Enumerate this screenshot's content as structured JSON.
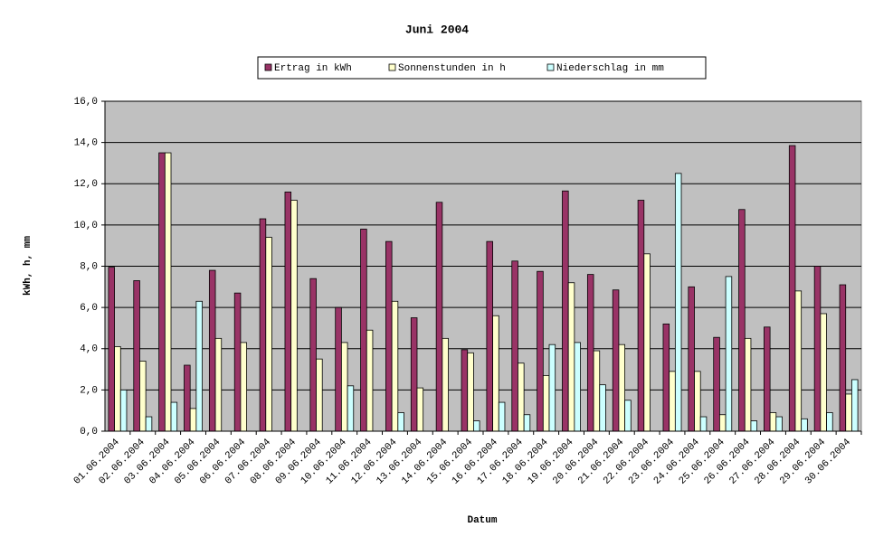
{
  "chart_data": {
    "type": "bar",
    "title": "Juni 2004",
    "x_label": "Datum",
    "y_label": "kWh, h, mm",
    "categories": [
      "01.06.2004",
      "02.06.2004",
      "03.06.2004",
      "04.06.2004",
      "05.06.2004",
      "06.06.2004",
      "07.06.2004",
      "08.06.2004",
      "09.06.2004",
      "10.06.2004",
      "11.06.2004",
      "12.06.2004",
      "13.06.2004",
      "14.06.2004",
      "15.06.2004",
      "16.06.2004",
      "17.06.2004",
      "18.06.2004",
      "19.06.2004",
      "20.06.2004",
      "21.06.2004",
      "22.06.2004",
      "23.06.2004",
      "24.06.2004",
      "25.06.2004",
      "26.06.2004",
      "27.06.2004",
      "28.06.2004",
      "29.06.2004",
      "30.06.2004"
    ],
    "series": [
      {
        "name": "Ertrag in kWh",
        "color": "#993366",
        "values": [
          7.95,
          7.3,
          13.5,
          3.2,
          7.8,
          6.7,
          10.3,
          11.6,
          7.4,
          6.0,
          9.8,
          9.2,
          5.5,
          11.1,
          3.95,
          9.2,
          8.25,
          7.75,
          11.65,
          7.6,
          6.85,
          11.2,
          5.2,
          7.0,
          4.55,
          10.75,
          5.05,
          13.85,
          8.0,
          7.1
        ]
      },
      {
        "name": "Sonnenstunden in h",
        "color": "#ffffcc",
        "values": [
          4.1,
          3.4,
          13.5,
          1.1,
          4.5,
          4.3,
          9.4,
          11.2,
          3.5,
          4.3,
          4.9,
          6.3,
          2.1,
          4.5,
          3.8,
          5.6,
          3.3,
          2.7,
          7.2,
          3.9,
          4.2,
          8.6,
          2.9,
          2.9,
          0.8,
          4.5,
          0.9,
          6.8,
          5.7,
          1.8
        ]
      },
      {
        "name": "Niederschlag in mm",
        "color": "#ccffff",
        "values": [
          2.0,
          0.7,
          1.4,
          6.3,
          0,
          0,
          0,
          0,
          0,
          2.2,
          0,
          0.9,
          0,
          0,
          0.5,
          1.4,
          0.8,
          4.2,
          4.3,
          2.25,
          1.5,
          0,
          12.5,
          0.7,
          7.5,
          0.5,
          0.7,
          0.6,
          0.9,
          2.5
        ]
      }
    ],
    "ylim": [
      0,
      16
    ],
    "yticks": [
      {
        "value": 0,
        "label": "0,0"
      },
      {
        "value": 2,
        "label": "2,0"
      },
      {
        "value": 4,
        "label": "4,0"
      },
      {
        "value": 6,
        "label": "6,0"
      },
      {
        "value": 8,
        "label": "8,0"
      },
      {
        "value": 10,
        "label": "10,0"
      },
      {
        "value": 12,
        "label": "12,0"
      },
      {
        "value": 14,
        "label": "14,0"
      },
      {
        "value": 16,
        "label": "16,0"
      }
    ],
    "grid": true,
    "legend": "top"
  }
}
